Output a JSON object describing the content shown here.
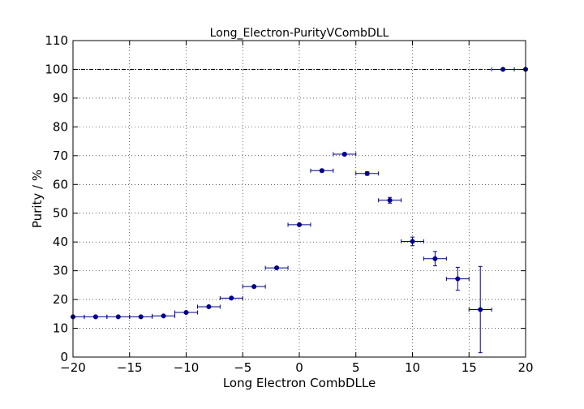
{
  "chart_data": {
    "type": "scatter",
    "title": "Long_Electron-PurityVCombDLL",
    "xlabel": "Long Electron CombDLLe",
    "ylabel": "Purity / %",
    "xlim": [
      -20,
      20
    ],
    "ylim": [
      0,
      110
    ],
    "xticks": [
      -20,
      -15,
      -10,
      -5,
      0,
      5,
      10,
      15,
      20
    ],
    "yticks": [
      0,
      10,
      20,
      30,
      40,
      50,
      60,
      70,
      80,
      90,
      100,
      110
    ],
    "xtick_labels": [
      "−20",
      "−15",
      "−10",
      "−5",
      "0",
      "5",
      "10",
      "15",
      "20"
    ],
    "ytick_labels": [
      "0",
      "10",
      "20",
      "30",
      "40",
      "50",
      "60",
      "70",
      "80",
      "90",
      "100",
      "110"
    ],
    "grid": true,
    "reference_line_y": 100,
    "series_color": "#00008b",
    "points": [
      {
        "x": -20,
        "y": 14.0,
        "xerr": 1,
        "yerr": 0.2
      },
      {
        "x": -18,
        "y": 14.0,
        "xerr": 1,
        "yerr": 0.2
      },
      {
        "x": -16,
        "y": 14.0,
        "xerr": 1,
        "yerr": 0.2
      },
      {
        "x": -14,
        "y": 14.0,
        "xerr": 1,
        "yerr": 0.2
      },
      {
        "x": -12,
        "y": 14.3,
        "xerr": 1,
        "yerr": 0.2
      },
      {
        "x": -10,
        "y": 15.5,
        "xerr": 1,
        "yerr": 0.2
      },
      {
        "x": -8,
        "y": 17.5,
        "xerr": 1,
        "yerr": 0.3
      },
      {
        "x": -6,
        "y": 20.5,
        "xerr": 1,
        "yerr": 0.3
      },
      {
        "x": -4,
        "y": 24.5,
        "xerr": 1,
        "yerr": 0.3
      },
      {
        "x": -2,
        "y": 31.0,
        "xerr": 1,
        "yerr": 0.4
      },
      {
        "x": 0,
        "y": 46.0,
        "xerr": 1,
        "yerr": 0.4
      },
      {
        "x": 2,
        "y": 64.8,
        "xerr": 1,
        "yerr": 0.5
      },
      {
        "x": 4,
        "y": 70.5,
        "xerr": 1,
        "yerr": 0.5
      },
      {
        "x": 6,
        "y": 63.8,
        "xerr": 1,
        "yerr": 0.6
      },
      {
        "x": 8,
        "y": 54.5,
        "xerr": 1,
        "yerr": 1.0
      },
      {
        "x": 10,
        "y": 40.2,
        "xerr": 1,
        "yerr": 1.5
      },
      {
        "x": 12,
        "y": 34.2,
        "xerr": 1,
        "yerr": 2.5
      },
      {
        "x": 14,
        "y": 27.2,
        "xerr": 1,
        "yerr": 4.0
      },
      {
        "x": 16,
        "y": 16.5,
        "xerr": 1,
        "yerr": 15.0
      },
      {
        "x": 18,
        "y": 100.0,
        "xerr": 1,
        "yerr": 0
      },
      {
        "x": 20,
        "y": 100.0,
        "xerr": 1,
        "yerr": 0
      }
    ]
  }
}
